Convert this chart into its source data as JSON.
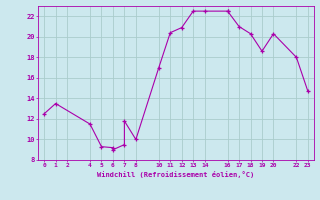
{
  "xlabel": "Windchill (Refroidissement éolien,°C)",
  "ylabel": "",
  "bg_color": "#cce8ee",
  "line_color": "#aa00aa",
  "grid_color": "#aacccc",
  "xlim": [
    -0.5,
    23.5
  ],
  "ylim": [
    8,
    23
  ],
  "xticks": [
    0,
    1,
    2,
    4,
    5,
    6,
    7,
    8,
    10,
    11,
    12,
    13,
    14,
    16,
    17,
    18,
    19,
    20,
    22,
    23
  ],
  "yticks": [
    8,
    10,
    12,
    14,
    16,
    18,
    20,
    22
  ],
  "points_x": [
    0,
    1,
    4,
    5,
    6,
    6,
    7,
    7,
    8,
    10,
    11,
    12,
    13,
    14,
    16,
    16,
    17,
    18,
    19,
    20,
    22,
    23
  ],
  "points_y": [
    12.5,
    13.5,
    11.5,
    9.3,
    9.2,
    9.0,
    9.5,
    11.8,
    10.0,
    17.0,
    20.4,
    20.9,
    22.5,
    22.5,
    22.5,
    22.5,
    21.0,
    20.3,
    18.6,
    20.3,
    18.0,
    14.7
  ]
}
